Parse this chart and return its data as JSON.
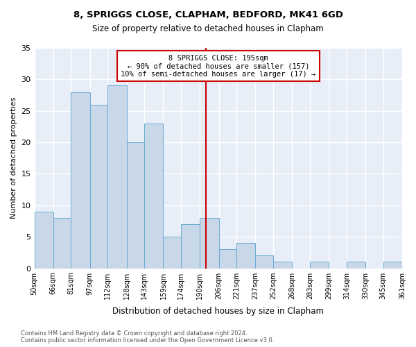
{
  "title1": "8, SPRIGGS CLOSE, CLAPHAM, BEDFORD, MK41 6GD",
  "title2": "Size of property relative to detached houses in Clapham",
  "xlabel": "Distribution of detached houses by size in Clapham",
  "ylabel": "Number of detached properties",
  "bar_color": "#c8d8e8",
  "bar_edgecolor": "#6aaad4",
  "background_color": "#e8eef8",
  "grid_color": "#ffffff",
  "tick_labels": [
    "50sqm",
    "66sqm",
    "81sqm",
    "97sqm",
    "112sqm",
    "128sqm",
    "143sqm",
    "159sqm",
    "174sqm",
    "190sqm",
    "206sqm",
    "221sqm",
    "237sqm",
    "252sqm",
    "268sqm",
    "283sqm",
    "299sqm",
    "314sqm",
    "330sqm",
    "345sqm",
    "361sqm"
  ],
  "values": [
    9,
    8,
    28,
    26,
    29,
    20,
    23,
    5,
    7,
    8,
    3,
    4,
    2,
    1,
    0,
    1,
    0,
    1,
    0,
    1
  ],
  "bin_edges": [
    50,
    66,
    81,
    97,
    112,
    128,
    143,
    159,
    174,
    190,
    206,
    221,
    237,
    252,
    268,
    283,
    299,
    314,
    330,
    345,
    361
  ],
  "property_size": 195,
  "annotation_text": "8 SPRIGGS CLOSE: 195sqm\n← 90% of detached houses are smaller (157)\n10% of semi-detached houses are larger (17) →",
  "vline_color": "#cc0000",
  "annotation_box_edgecolor": "#cc0000",
  "ylim": [
    0,
    35
  ],
  "yticks": [
    0,
    5,
    10,
    15,
    20,
    25,
    30,
    35
  ],
  "footer1": "Contains HM Land Registry data © Crown copyright and database right 2024.",
  "footer2": "Contains public sector information licensed under the Open Government Licence v3.0."
}
